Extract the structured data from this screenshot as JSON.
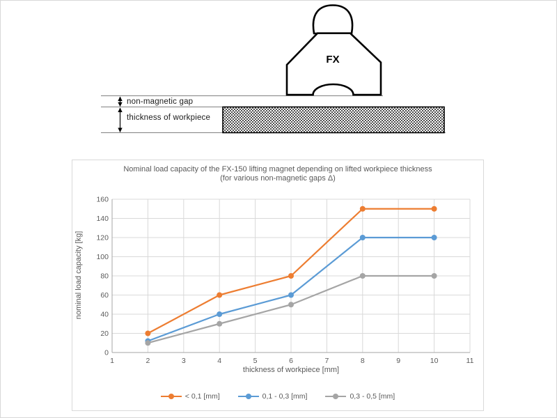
{
  "diagram": {
    "magnet_label": "FX",
    "gap_label": "non-magnetic gap",
    "thickness_label": "thickness of workpiece"
  },
  "chart": {
    "title_line1": "Nominal load capacity of the FX-150 lifting magnet depending on lifted workpiece thickness",
    "title_line2": "(for various non-magnetic gaps Δ)",
    "xlabel": "thickness of workpiece [mm]",
    "ylabel": "nominal load capacity [kg]"
  },
  "chart_data": {
    "type": "line",
    "title": "Nominal load capacity of the FX-150 lifting magnet depending on lifted workpiece thickness (for various non-magnetic gaps Δ)",
    "xlabel": "thickness of workpiece [mm]",
    "ylabel": "nominal load capacity [kg]",
    "x": [
      2,
      4,
      6,
      8,
      10
    ],
    "series": [
      {
        "name": "< 0,1 [mm]",
        "color": "#ED7D31",
        "values": [
          20,
          60,
          80,
          150,
          150
        ]
      },
      {
        "name": "0,1 - 0,3 [mm]",
        "color": "#5B9BD5",
        "values": [
          12,
          40,
          60,
          120,
          120
        ]
      },
      {
        "name": "0,3 - 0,5 [mm]",
        "color": "#A5A5A5",
        "values": [
          10,
          30,
          50,
          80,
          80
        ]
      }
    ],
    "xlim": [
      1,
      11
    ],
    "ylim": [
      0,
      160
    ],
    "xticks": [
      1,
      2,
      3,
      4,
      5,
      6,
      7,
      8,
      9,
      10,
      11
    ],
    "yticks": [
      0,
      20,
      40,
      60,
      80,
      100,
      120,
      140,
      160
    ],
    "grid": true,
    "legend_position": "bottom"
  },
  "colors": {
    "gridline": "#d9d9d9",
    "axis": "#a6a6a6",
    "chart_text": "#595959",
    "diagram_line": "#808080",
    "orange": "#ED7D31",
    "blue": "#5B9BD5",
    "gray": "#A5A5A5"
  }
}
